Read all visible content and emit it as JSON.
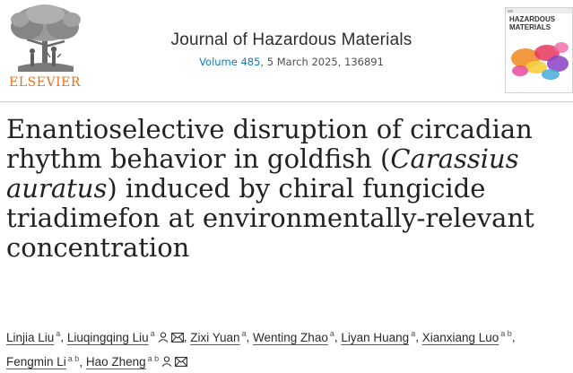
{
  "publisher": {
    "name": "ELSEVIER",
    "logo_icon": "elsevier-tree-logo"
  },
  "journal": {
    "title": "Journal of Hazardous Materials",
    "volume": "Volume 485",
    "details": ", 5 March 2025, 136891"
  },
  "cover": {
    "title": "HAZARDOUS\nMATERIALS",
    "icon": "journal-cover-thumbnail"
  },
  "article": {
    "title_parts": [
      {
        "text": "Enantioselective disruption of circadian rhythm behavior in goldfish (",
        "italic": false
      },
      {
        "text": "Carassius auratus",
        "italic": true
      },
      {
        "text": ") induced by chiral fungicide triadimefon at environmentally-relevant concentration",
        "italic": false
      }
    ]
  },
  "authors": [
    {
      "name": "Linjia Liu",
      "aff": "a",
      "person_icon": false,
      "email_icon": false
    },
    {
      "name": "Liuqingqing Liu",
      "aff": "a",
      "person_icon": true,
      "email_icon": true
    },
    {
      "name": "Zixi Yuan",
      "aff": "a",
      "person_icon": false,
      "email_icon": false
    },
    {
      "name": "Wenting Zhao",
      "aff": "a",
      "person_icon": false,
      "email_icon": false
    },
    {
      "name": "Liyan Huang",
      "aff": "a",
      "person_icon": false,
      "email_icon": false
    },
    {
      "name": "Xianxiang Luo",
      "aff": "a b",
      "person_icon": false,
      "email_icon": false
    },
    {
      "name": "Fengmin Li",
      "aff": "a b",
      "person_icon": false,
      "email_icon": false
    },
    {
      "name": "Hao Zheng",
      "aff": "a b",
      "person_icon": true,
      "email_icon": true
    }
  ],
  "colors": {
    "publisher_orange": "#e9711c",
    "link_blue": "#0c7dbb"
  }
}
